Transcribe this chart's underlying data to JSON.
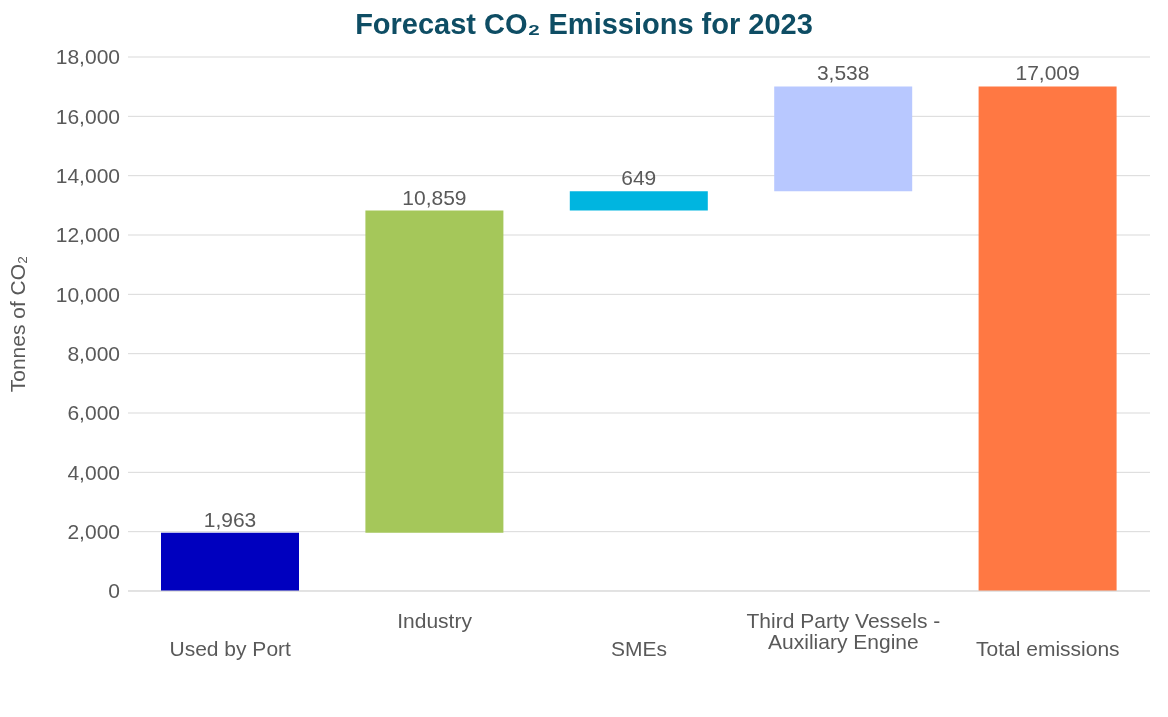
{
  "chart_data": {
    "type": "bar",
    "title": "Forecast CO₂ Emissions for 2023",
    "ylabel": "Tonnes of CO₂",
    "categories": [
      "Used by Port",
      "Industry",
      "SMEs",
      "Third  Party  Vessels - Auxiliary Engine",
      "Total emissions"
    ],
    "values": [
      1963,
      10859,
      649,
      3538,
      17009
    ],
    "base": [
      0,
      1963,
      12822,
      13471,
      0
    ],
    "colors": [
      "#0000bf",
      "#a5c75a",
      "#00b5e0",
      "#b8c8ff",
      "#ff7843"
    ],
    "value_labels": [
      "1,963",
      "10,859",
      "649",
      "3,538",
      "17,009"
    ],
    "ylim": [
      0,
      18000
    ],
    "yticks": [
      0,
      {
        "value": 2000,
        "label": "2,000"
      },
      {
        "value": 4000,
        "label": "4,000"
      },
      {
        "value": 6000,
        "label": "6,000"
      },
      {
        "value": 8000,
        "label": "8,000"
      },
      {
        "value": 10000,
        "label": "10,000"
      },
      {
        "value": 12000,
        "label": "12,000"
      },
      {
        "value": 14000,
        "label": "14,000"
      },
      {
        "value": 16000,
        "label": "16,000"
      },
      {
        "value": 18000,
        "label": "18,000"
      }
    ],
    "grid": "y",
    "legend": false
  }
}
